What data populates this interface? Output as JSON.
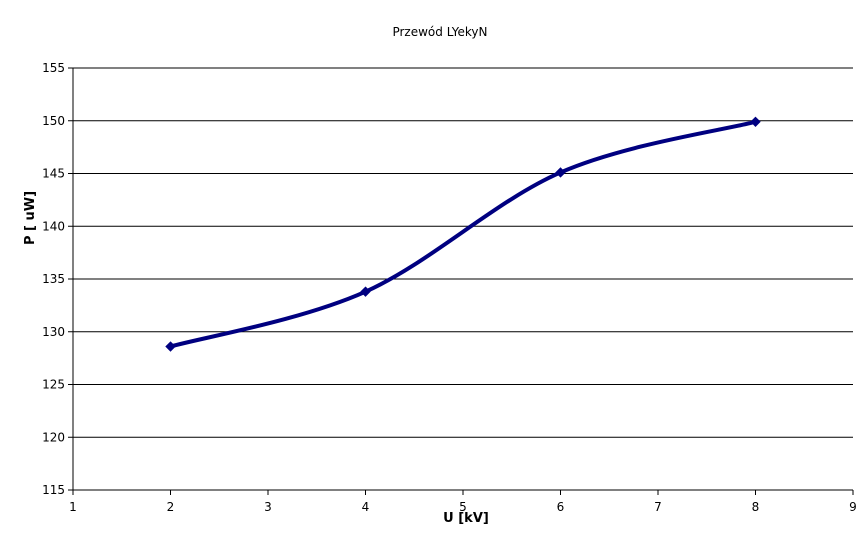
{
  "chart_data": {
    "type": "line",
    "title": "Przewód LYekyN",
    "xlabel": "U  [kV]",
    "ylabel": "P  [ uW]",
    "xlim": [
      1,
      9
    ],
    "ylim": [
      115,
      155
    ],
    "xticks": [
      1,
      2,
      3,
      4,
      5,
      6,
      7,
      8,
      9
    ],
    "yticks": [
      115,
      120,
      125,
      130,
      135,
      140,
      145,
      150,
      155
    ],
    "grid": "horizontal",
    "legend": "none",
    "series": [
      {
        "color": "#000080",
        "points": [
          {
            "x": 2,
            "y": 128.6
          },
          {
            "x": 4,
            "y": 133.8
          },
          {
            "x": 6,
            "y": 145.1
          },
          {
            "x": 8,
            "y": 149.9
          }
        ]
      }
    ]
  }
}
